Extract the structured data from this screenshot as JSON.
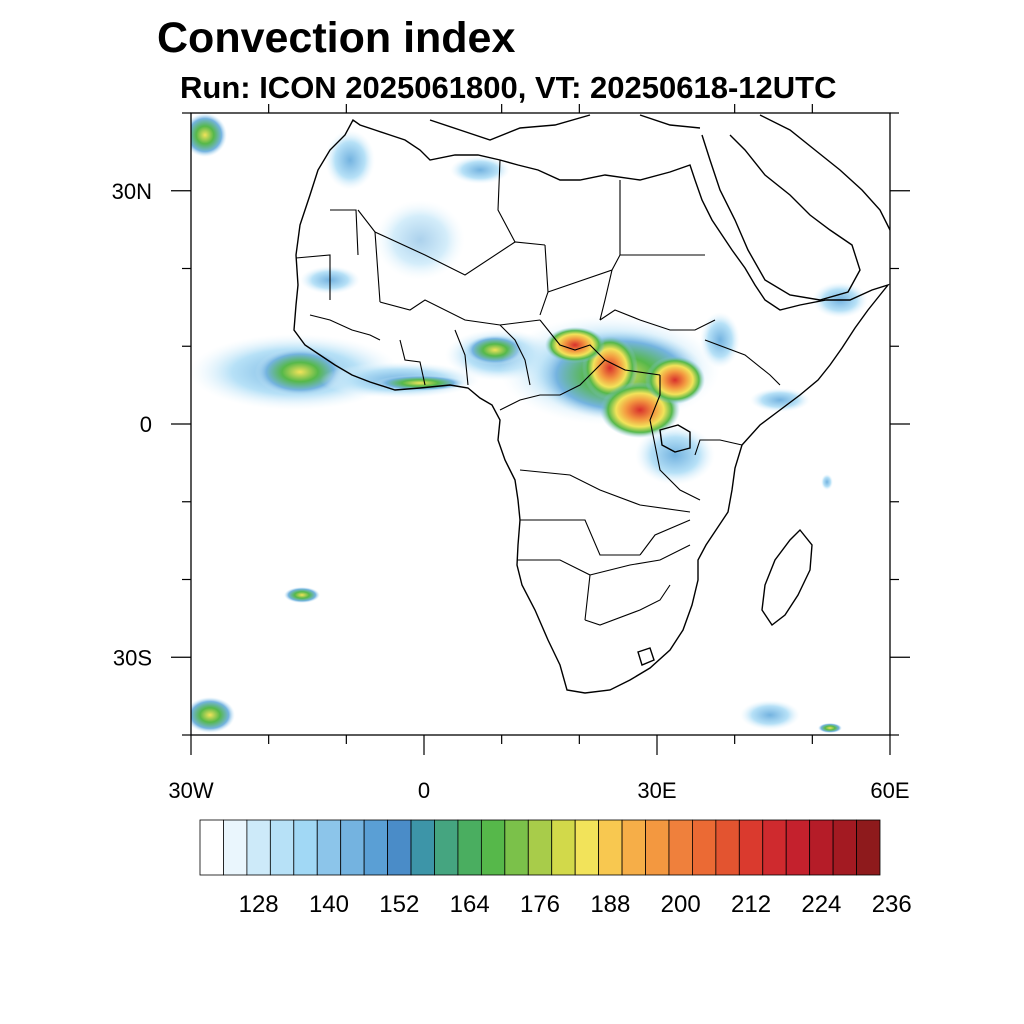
{
  "header": {
    "title": "Convection index",
    "subtitle": "Run: ICON 2025061800,  VT: 20250618-12UTC"
  },
  "map": {
    "lon_range": [
      -30,
      60
    ],
    "lat_range": [
      -40,
      40
    ],
    "x_ticks": [
      {
        "value": -30,
        "label": "30W"
      },
      {
        "value": 0,
        "label": "0"
      },
      {
        "value": 30,
        "label": "30E"
      },
      {
        "value": 60,
        "label": "60E"
      }
    ],
    "y_ticks": [
      {
        "value": 30,
        "label": "30N"
      },
      {
        "value": 0,
        "label": "0"
      },
      {
        "value": -30,
        "label": "30S"
      }
    ],
    "coastline_color": "#000000"
  },
  "colorbar": {
    "labels": [
      "128",
      "140",
      "152",
      "164",
      "176",
      "188",
      "200",
      "212",
      "224",
      "236"
    ],
    "colors": [
      "#ffffff",
      "#eaf6fd",
      "#cdeaf9",
      "#b7e1f7",
      "#a1d8f5",
      "#8cc5ea",
      "#74b3e0",
      "#5a9fd5",
      "#4a8cc8",
      "#3d95a8",
      "#45a580",
      "#4aae60",
      "#56b84a",
      "#7bc14a",
      "#a8cc4a",
      "#d2d94a",
      "#f2e35a",
      "#f8c850",
      "#f6ae48",
      "#f39840",
      "#ef803c",
      "#eb6a34",
      "#e35430",
      "#da3a2e",
      "#cf2a2e",
      "#c4212d",
      "#b51c28",
      "#a31a22",
      "#8e1a1c"
    ]
  }
}
